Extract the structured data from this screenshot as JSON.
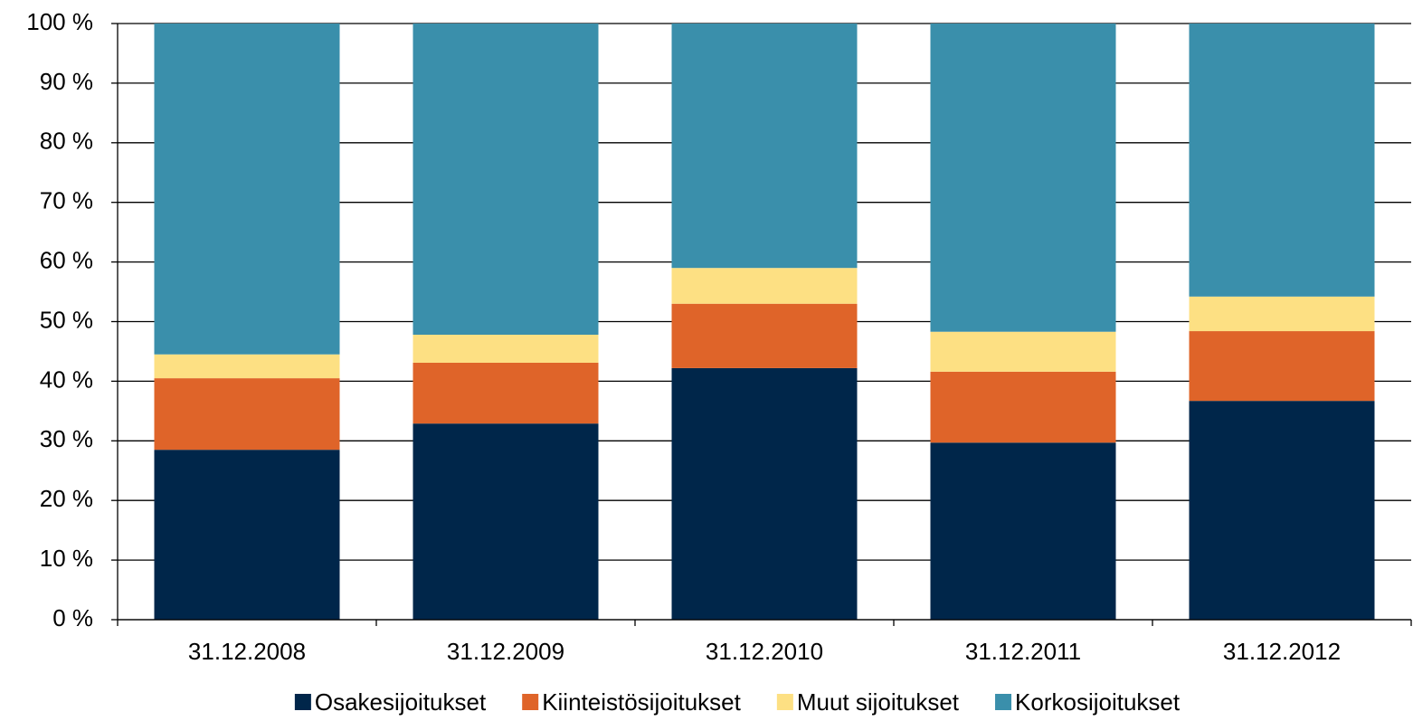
{
  "chart_data": {
    "type": "stacked_bar",
    "categories": [
      "31.12.2008",
      "31.12.2009",
      "31.12.2010",
      "31.12.2011",
      "31.12.2012"
    ],
    "series": [
      {
        "name": "Osakesijoitukset",
        "color": "#00264a",
        "values": [
          28.5,
          32.9,
          42.2,
          29.7,
          36.7
        ]
      },
      {
        "name": "Kiinteistösijoitukset",
        "color": "#df6429",
        "values": [
          12.0,
          10.2,
          10.8,
          11.9,
          11.7
        ]
      },
      {
        "name": "Muut sijoitukset",
        "color": "#fde083",
        "values": [
          4.0,
          4.7,
          6.0,
          6.7,
          5.8
        ]
      },
      {
        "name": "Korkosijoitukset",
        "color": "#3a8fab",
        "values": [
          55.5,
          52.2,
          41.0,
          51.7,
          45.8
        ]
      }
    ],
    "ylim": [
      0,
      100
    ],
    "yticks": [
      {
        "value": 0,
        "label": "0 %"
      },
      {
        "value": 10,
        "label": "10 %"
      },
      {
        "value": 20,
        "label": "20 %"
      },
      {
        "value": 30,
        "label": "30 %"
      },
      {
        "value": 40,
        "label": "40 %"
      },
      {
        "value": 50,
        "label": "50 %"
      },
      {
        "value": 60,
        "label": "60 %"
      },
      {
        "value": 70,
        "label": "70 %"
      },
      {
        "value": 80,
        "label": "80 %"
      },
      {
        "value": 90,
        "label": "90 %"
      },
      {
        "value": 100,
        "label": "100 %"
      }
    ],
    "grid": true,
    "legend": "bottom"
  }
}
